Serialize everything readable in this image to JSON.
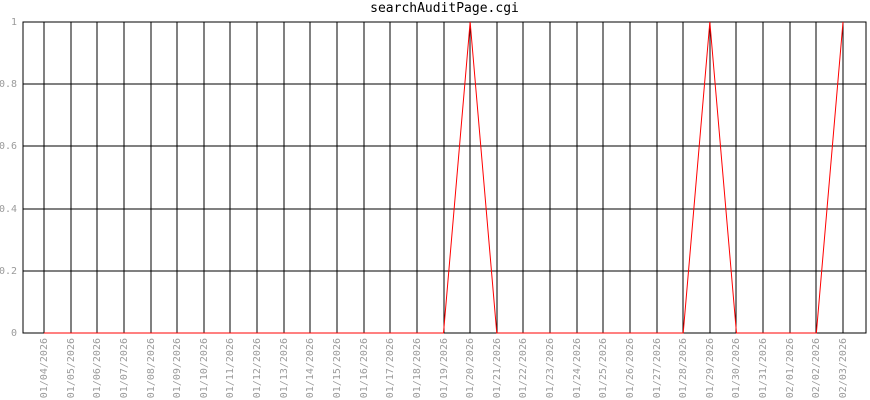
{
  "chart_data": {
    "type": "line",
    "title": "searchAuditPage.cgi",
    "xlabel": "",
    "ylabel": "",
    "x_labels": [
      "01/04/2026",
      "01/05/2026",
      "01/06/2026",
      "01/07/2026",
      "01/08/2026",
      "01/09/2026",
      "01/10/2026",
      "01/11/2026",
      "01/12/2026",
      "01/13/2026",
      "01/14/2026",
      "01/15/2026",
      "01/16/2026",
      "01/17/2026",
      "01/18/2026",
      "01/19/2026",
      "01/20/2026",
      "01/21/2026",
      "01/22/2026",
      "01/23/2026",
      "01/24/2026",
      "01/25/2026",
      "01/26/2026",
      "01/27/2026",
      "01/28/2026",
      "01/29/2026",
      "01/30/2026",
      "01/31/2026",
      "02/01/2026",
      "02/02/2026",
      "02/03/2026"
    ],
    "values": [
      0,
      0,
      0,
      0,
      0,
      0,
      0,
      0,
      0,
      0,
      0,
      0,
      0,
      0,
      0,
      0,
      1,
      0,
      0,
      0,
      0,
      0,
      0,
      0,
      0,
      1,
      0,
      0,
      0,
      0,
      1
    ],
    "ylim": [
      0,
      1
    ],
    "y_tick_values": [
      0,
      0.2,
      0.4,
      0.6,
      0.8,
      1
    ],
    "y_tick_labels": [
      "0",
      "0.2",
      "0.4",
      "0.6",
      "0.8",
      "1"
    ],
    "grid": true,
    "legend": "none",
    "colors": {
      "line": "#ff0000",
      "grid": "#000000",
      "border": "#000000",
      "tick_label": "#9b9b9b",
      "title": "#000000",
      "background": "#ffffff"
    }
  }
}
